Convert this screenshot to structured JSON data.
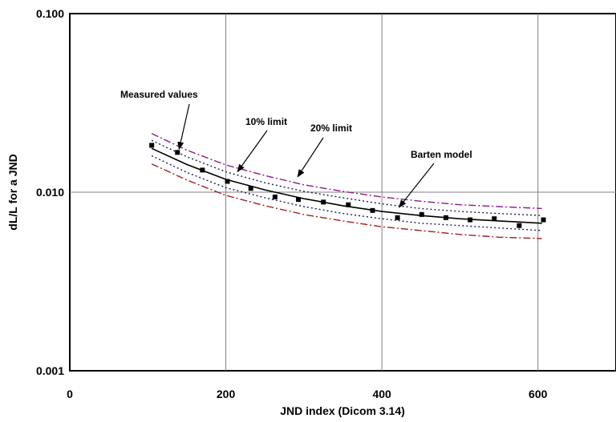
{
  "chart_data": {
    "type": "line",
    "title": "",
    "xlabel": "JND index (Dicom 3.14)",
    "ylabel": "dL/L for a JND",
    "xlim": [
      0,
      700
    ],
    "ylim": [
      0.001,
      0.1
    ],
    "yscale": "log",
    "grid": true,
    "x_ticks": [
      {
        "value": 0,
        "label": "0"
      },
      {
        "value": 200,
        "label": "200"
      },
      {
        "value": 400,
        "label": "400"
      },
      {
        "value": 600,
        "label": "600"
      }
    ],
    "y_ticks": [
      {
        "value": 0.001,
        "label": "0.001"
      },
      {
        "value": 0.01,
        "label": "0.010"
      },
      {
        "value": 0.1,
        "label": "0.100"
      }
    ],
    "series": [
      {
        "name": "Barten model",
        "style": "solid",
        "color": "#000000",
        "x": [
          105,
          150,
          200,
          250,
          300,
          350,
          400,
          450,
          500,
          550,
          605
        ],
        "y": [
          0.0176,
          0.0143,
          0.0118,
          0.0103,
          0.0092,
          0.0084,
          0.0078,
          0.0074,
          0.0071,
          0.0069,
          0.0067
        ]
      },
      {
        "name": "",
        "style": "dotted",
        "color": "#1a1a66",
        "x": [
          105,
          150,
          200,
          250,
          300,
          350,
          400,
          450,
          500,
          550,
          605
        ],
        "y": [
          0.0195,
          0.0158,
          0.013,
          0.0113,
          0.0101,
          0.0093,
          0.0086,
          0.0081,
          0.0078,
          0.0076,
          0.0074
        ]
      },
      {
        "name": "",
        "style": "dotted",
        "color": "#1a1a66",
        "x": [
          105,
          150,
          200,
          250,
          300,
          350,
          400,
          450,
          500,
          550,
          605
        ],
        "y": [
          0.016,
          0.0129,
          0.0106,
          0.0093,
          0.0083,
          0.0076,
          0.0071,
          0.0067,
          0.0065,
          0.0063,
          0.0061
        ]
      },
      {
        "name": "",
        "style": "dashdot",
        "color": "#8b1a8b",
        "x": [
          105,
          150,
          200,
          250,
          300,
          350,
          400,
          450,
          500,
          550,
          605
        ],
        "y": [
          0.0213,
          0.0172,
          0.0142,
          0.0124,
          0.011,
          0.0101,
          0.0094,
          0.0089,
          0.0085,
          0.0083,
          0.0081
        ]
      },
      {
        "name": "",
        "style": "dashdot",
        "color": "#a02020",
        "x": [
          105,
          150,
          200,
          250,
          300,
          350,
          400,
          450,
          500,
          550,
          605
        ],
        "y": [
          0.0144,
          0.0117,
          0.0096,
          0.0084,
          0.0075,
          0.0069,
          0.0064,
          0.0061,
          0.0058,
          0.0056,
          0.0055
        ]
      },
      {
        "name": "Measured values",
        "style": "markers",
        "color": "#000000",
        "x": [
          105,
          138,
          170,
          202,
          232,
          263,
          293,
          325,
          357,
          388,
          420,
          451,
          482,
          513,
          544,
          576,
          607
        ],
        "y": [
          0.0183,
          0.0167,
          0.0133,
          0.0115,
          0.0105,
          0.0094,
          0.0091,
          0.0088,
          0.0085,
          0.0079,
          0.0072,
          0.0075,
          0.0072,
          0.007,
          0.0071,
          0.0065,
          0.007
        ]
      }
    ],
    "annotations": [
      {
        "text": "Measured values",
        "target_x": 138,
        "target_y": 0.0167
      },
      {
        "text": "10% limit",
        "target_x": 213,
        "target_y": 0.0125
      },
      {
        "text": "20% limit",
        "target_x": 290,
        "target_y": 0.0117
      },
      {
        "text": "Barten model",
        "target_x": 420,
        "target_y": 0.0079
      }
    ]
  }
}
